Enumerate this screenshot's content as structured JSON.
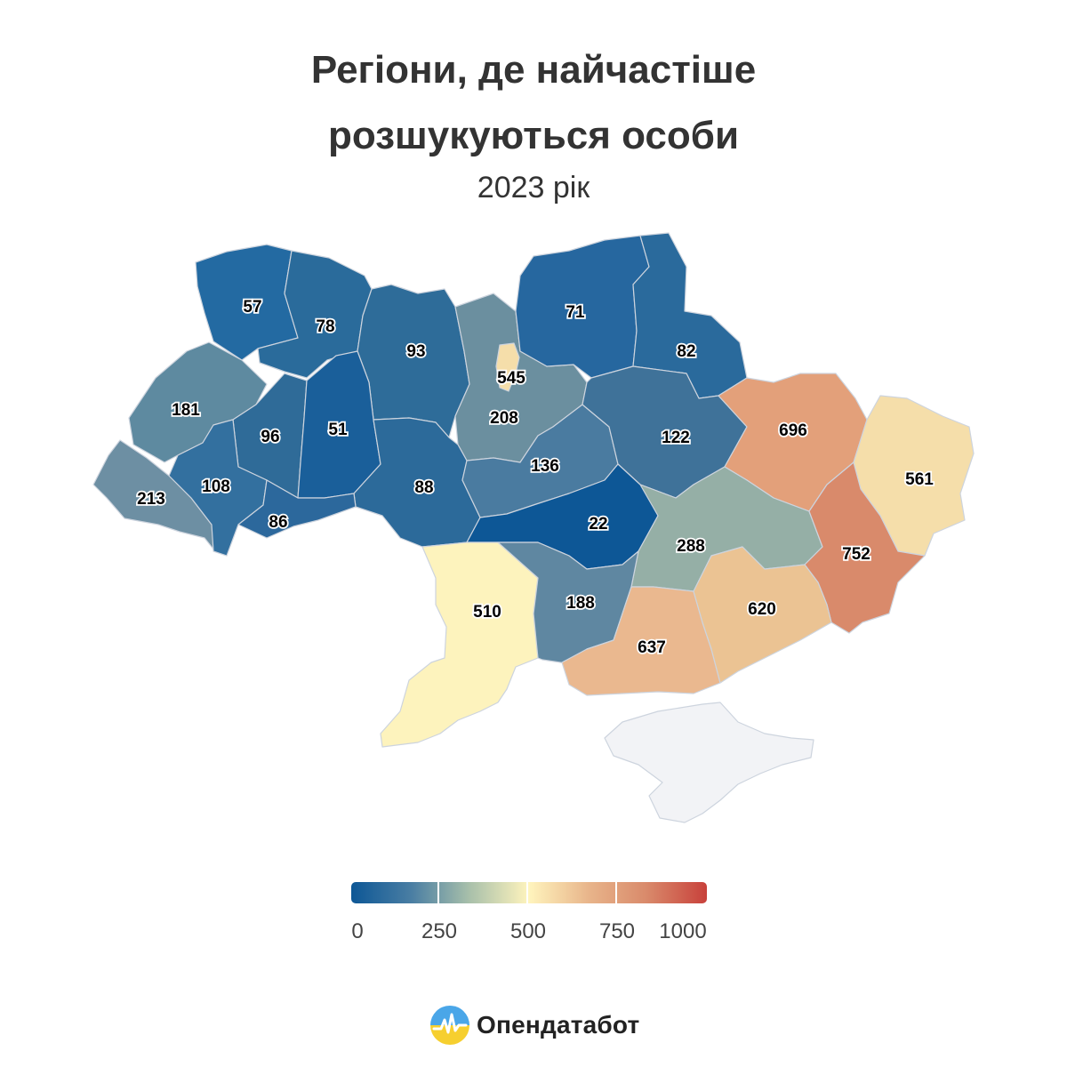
{
  "title": {
    "line1": "Регіони, де найчастіше",
    "line2": "розшукуються особи"
  },
  "subtitle": "2023 рік",
  "legend": {
    "ticks": [
      "0",
      "250",
      "500",
      "750",
      "1000"
    ],
    "colors": [
      "#0d5796",
      "#4a7ea3",
      "#a7bfaa",
      "#fff4bd",
      "#e8b48a",
      "#d98a6b",
      "#c8413b"
    ]
  },
  "regions": [
    {
      "name": "Volyn",
      "value": 57,
      "label": "57",
      "color": "#236aa2"
    },
    {
      "name": "Rivne",
      "value": 78,
      "label": "78",
      "color": "#2a6b9b"
    },
    {
      "name": "Zhytomyr",
      "value": 93,
      "label": "93",
      "color": "#2e6c99"
    },
    {
      "name": "Kyiv oblast",
      "value": 208,
      "label": "208",
      "color": "#6b8f9f"
    },
    {
      "name": "Kyiv city",
      "value": 545,
      "label": "545",
      "color": "#f5deaa"
    },
    {
      "name": "Chernihiv",
      "value": 71,
      "label": "71",
      "color": "#26679f"
    },
    {
      "name": "Sumy",
      "value": 82,
      "label": "82",
      "color": "#2a6a9c"
    },
    {
      "name": "Lviv",
      "value": 181,
      "label": "181",
      "color": "#5e8aa0"
    },
    {
      "name": "Ternopil",
      "value": 96,
      "label": "96",
      "color": "#2f6b98"
    },
    {
      "name": "Khmelnytskyi",
      "value": 51,
      "label": "51",
      "color": "#1a5f9a"
    },
    {
      "name": "Vinnytsia",
      "value": 88,
      "label": "88",
      "color": "#2c6a9a"
    },
    {
      "name": "Cherkasy",
      "value": 136,
      "label": "136",
      "color": "#4a7ba0"
    },
    {
      "name": "Poltava",
      "value": 122,
      "label": "122",
      "color": "#3f7299"
    },
    {
      "name": "Kharkiv",
      "value": 696,
      "label": "696",
      "color": "#e3a07a"
    },
    {
      "name": "Luhansk",
      "value": 561,
      "label": "561",
      "color": "#f5deaa"
    },
    {
      "name": "Zakarpattia",
      "value": 213,
      "label": "213",
      "color": "#6d8fa3"
    },
    {
      "name": "Ivano-Frankivsk",
      "value": 108,
      "label": "108",
      "color": "#33709f"
    },
    {
      "name": "Chernivtsi",
      "value": 86,
      "label": "86",
      "color": "#2c689c"
    },
    {
      "name": "Kirovohrad",
      "value": 22,
      "label": "22",
      "color": "#0d5796"
    },
    {
      "name": "Dnipropetrovsk",
      "value": 288,
      "label": "288",
      "color": "#95afa6"
    },
    {
      "name": "Donetsk",
      "value": 752,
      "label": "752",
      "color": "#d98a6b"
    },
    {
      "name": "Odesa",
      "value": 510,
      "label": "510",
      "color": "#fdf3bd"
    },
    {
      "name": "Mykolaiv",
      "value": 188,
      "label": "188",
      "color": "#5f87a1"
    },
    {
      "name": "Kherson",
      "value": 637,
      "label": "637",
      "color": "#eab88f"
    },
    {
      "name": "Zaporizhzhia",
      "value": 620,
      "label": "620",
      "color": "#ebc393"
    },
    {
      "name": "Crimea",
      "value": null,
      "label": "",
      "color": "#f2f3f6"
    }
  ],
  "brand": "Опендатабот"
}
